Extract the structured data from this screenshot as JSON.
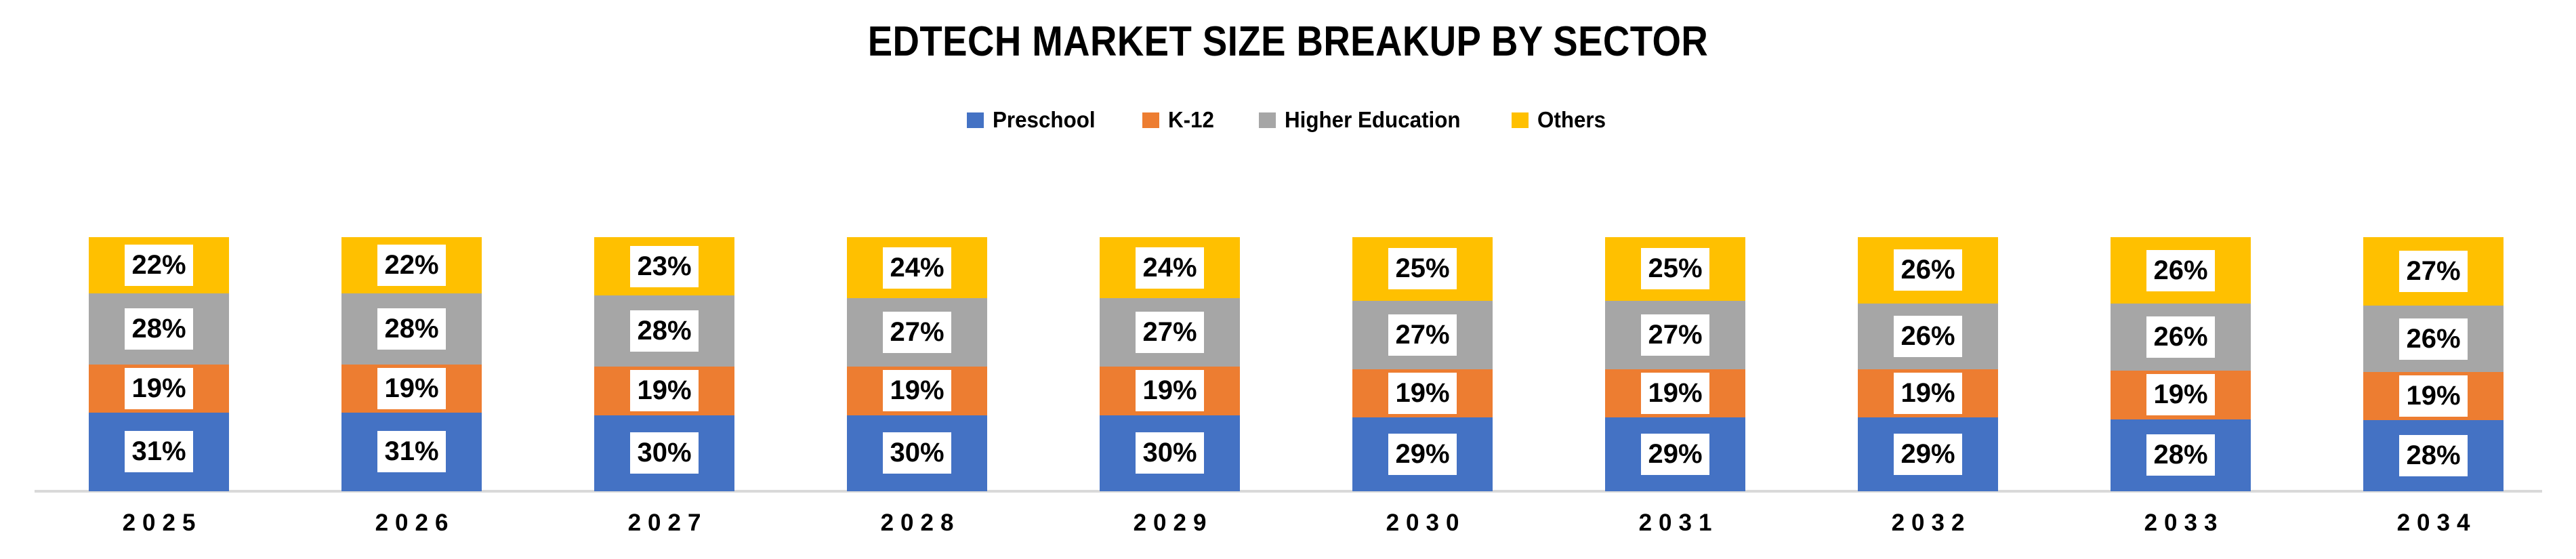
{
  "title": "EDTECH MARKET SIZE BREAKUP BY SECTOR",
  "colors": {
    "preschool": "#4472C4",
    "k12": "#ED7D31",
    "higher_education": "#A6A6A6",
    "others": "#FFC000",
    "axis_line": "#D9D9D9",
    "value_label_bg": "#FFFFFF",
    "text": "#000000"
  },
  "legend": [
    {
      "label": "Preschool",
      "color": "#4472C4"
    },
    {
      "label": "K-12",
      "color": "#ED7D31"
    },
    {
      "label": "Higher Education",
      "color": "#A6A6A6"
    },
    {
      "label": "Others",
      "color": "#FFC000"
    }
  ],
  "chart_data": {
    "type": "bar",
    "stacked": true,
    "percent_labels": true,
    "value_suffix": "%",
    "title": "EDTECH MARKET SIZE BREAKUP BY SECTOR",
    "xlabel": "",
    "ylabel": "",
    "grid": false,
    "legend_position": "top",
    "categories": [
      "2025",
      "2026",
      "2027",
      "2028",
      "2029",
      "2030",
      "2031",
      "2032",
      "2033",
      "2034"
    ],
    "series": [
      {
        "name": "Preschool",
        "color": "#4472C4",
        "values": [
          31,
          31,
          30,
          30,
          30,
          29,
          29,
          29,
          28,
          28
        ]
      },
      {
        "name": "K-12",
        "color": "#ED7D31",
        "values": [
          19,
          19,
          19,
          19,
          19,
          19,
          19,
          19,
          19,
          19
        ]
      },
      {
        "name": "Higher Education",
        "color": "#A6A6A6",
        "values": [
          28,
          28,
          28,
          27,
          27,
          27,
          27,
          26,
          26,
          26
        ]
      },
      {
        "name": "Others",
        "color": "#FFC000",
        "values": [
          22,
          22,
          23,
          24,
          24,
          25,
          25,
          26,
          26,
          27
        ]
      }
    ]
  }
}
